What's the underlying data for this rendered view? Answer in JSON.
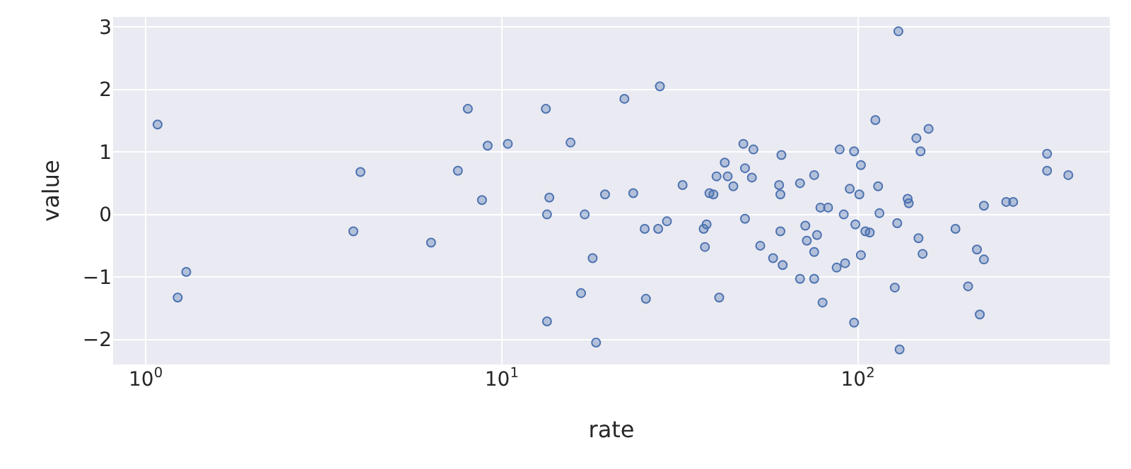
{
  "chart_data": {
    "type": "scatter",
    "xlabel": "rate",
    "ylabel": "value",
    "log": "x",
    "grid": true,
    "marker": "circle",
    "xlim": [
      0.81,
      510
    ],
    "ylim": [
      -2.4,
      3.16
    ],
    "xticks": [
      {
        "value": 1,
        "label": "10$^{0}$"
      },
      {
        "value": 10,
        "label": "10$^{1}$"
      },
      {
        "value": 100,
        "label": "10$^{2}$"
      }
    ],
    "yticks": [
      {
        "value": -2,
        "label": "−2"
      },
      {
        "value": -1,
        "label": "−1"
      },
      0,
      1,
      2,
      3
    ],
    "series": [
      {
        "color": "#4c72b0",
        "x": [
          1.08,
          1.23,
          1.3,
          3.83,
          4.01,
          6.33,
          7.53,
          8.03,
          8.8,
          9.13,
          10.4,
          13.3,
          13.4,
          13.4,
          13.6,
          15.6,
          16.7,
          17.1,
          18,
          18.4,
          19.5,
          22.1,
          23.4,
          25.2,
          25.4,
          27.5,
          27.8,
          29.1,
          32.2,
          36.9,
          37.2,
          37.6,
          38.3,
          39.3,
          40.1,
          40.8,
          42.3,
          43.1,
          44.7,
          47.7,
          48.2,
          48.2,
          50.4,
          50.9,
          53.2,
          57.8,
          60.1,
          60.6,
          60.6,
          61,
          61.5,
          68.8,
          68.8,
          71.2,
          71.9,
          75.4,
          75.4,
          75.4,
          76.8,
          78.5,
          79.6,
          82.5,
          87.2,
          88.9,
          91.3,
          92.1,
          94.9,
          97.6,
          97.6,
          98.4,
          101,
          102,
          102,
          105,
          108,
          112,
          114,
          115,
          127,
          129,
          130,
          131,
          138,
          139,
          146,
          148,
          150,
          152,
          158,
          188,
          204,
          216,
          220,
          226,
          226,
          261,
          273,
          340,
          340,
          390
        ],
        "values": [
          1.44,
          -1.33,
          -0.92,
          -0.27,
          0.68,
          -0.45,
          0.7,
          1.69,
          0.23,
          1.1,
          1.13,
          1.69,
          0,
          -1.71,
          0.27,
          1.15,
          -1.26,
          0,
          -0.7,
          -2.05,
          0.32,
          1.85,
          0.34,
          -0.23,
          -1.35,
          -0.23,
          2.05,
          -0.11,
          0.47,
          -0.23,
          -0.52,
          -0.16,
          0.34,
          0.32,
          0.61,
          -1.33,
          0.83,
          0.61,
          0.45,
          1.13,
          0.74,
          -0.07,
          0.59,
          1.04,
          -0.5,
          -0.7,
          0.47,
          0.32,
          -0.27,
          0.95,
          -0.81,
          0.5,
          -1.03,
          -0.18,
          -0.42,
          0.63,
          -0.6,
          -1.03,
          -0.33,
          0.11,
          -1.41,
          0.11,
          -0.85,
          1.04,
          0,
          -0.78,
          0.41,
          1.01,
          -1.73,
          -0.16,
          0.32,
          0.79,
          -0.65,
          -0.27,
          -0.29,
          1.51,
          0.45,
          0.02,
          -1.17,
          -0.14,
          2.93,
          -2.16,
          0.25,
          0.18,
          1.22,
          -0.38,
          1.01,
          -0.63,
          1.37,
          -0.23,
          -1.15,
          -0.56,
          -1.6,
          -0.72,
          0.14,
          0.2,
          0.2,
          0.97,
          0.7,
          0.63
        ]
      }
    ]
  }
}
